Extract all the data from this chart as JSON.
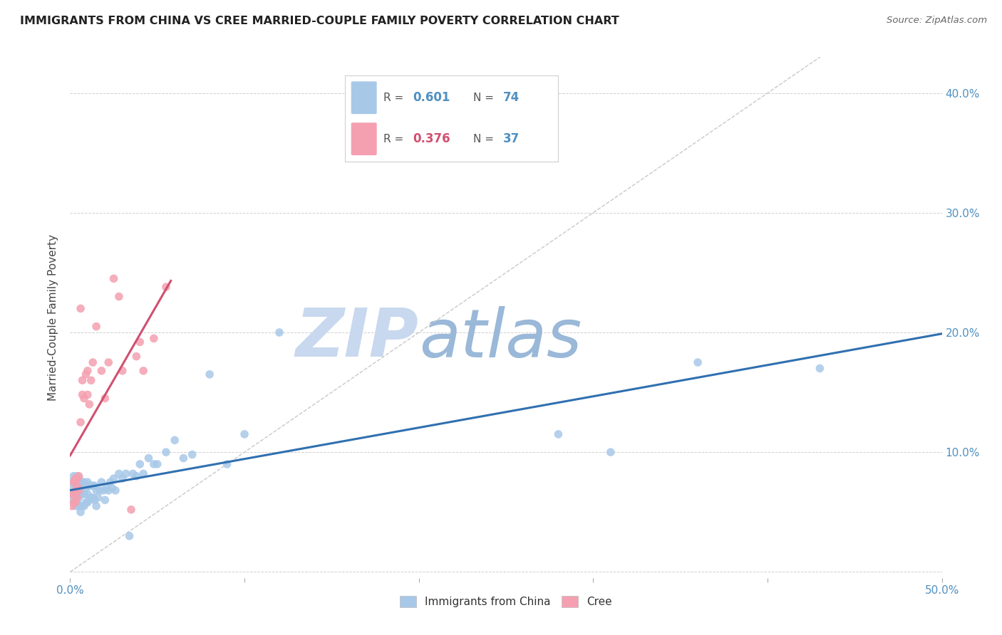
{
  "title": "IMMIGRANTS FROM CHINA VS CREE MARRIED-COUPLE FAMILY POVERTY CORRELATION CHART",
  "source": "Source: ZipAtlas.com",
  "ylabel": "Married-Couple Family Poverty",
  "xlim": [
    0,
    0.5
  ],
  "ylim": [
    -0.005,
    0.43
  ],
  "xticks": [
    0.0,
    0.1,
    0.2,
    0.3,
    0.4,
    0.5
  ],
  "xticklabels": [
    "0.0%",
    "",
    "",
    "",
    "",
    "50.0%"
  ],
  "yticks": [
    0.0,
    0.1,
    0.2,
    0.3,
    0.4
  ],
  "right_yticklabels": [
    "",
    "10.0%",
    "20.0%",
    "30.0%",
    "40.0%"
  ],
  "blue_color": "#a8c8e8",
  "pink_color": "#f4a0b0",
  "blue_line_color": "#3070b0",
  "pink_line_color": "#d05070",
  "diagonal_color": "#c8c8c8",
  "tick_color": "#5090c0",
  "watermark_zip_color": "#c8d8ee",
  "watermark_atlas_color": "#9ab8d8",
  "background_color": "#ffffff",
  "legend_blue_r": "0.601",
  "legend_blue_n": "74",
  "legend_pink_r": "0.376",
  "legend_pink_n": "37",
  "china_x": [
    0.001,
    0.001,
    0.002,
    0.002,
    0.002,
    0.003,
    0.003,
    0.003,
    0.004,
    0.004,
    0.004,
    0.004,
    0.005,
    0.005,
    0.005,
    0.005,
    0.006,
    0.006,
    0.006,
    0.007,
    0.007,
    0.007,
    0.008,
    0.008,
    0.008,
    0.009,
    0.009,
    0.01,
    0.01,
    0.01,
    0.011,
    0.011,
    0.012,
    0.012,
    0.013,
    0.013,
    0.014,
    0.014,
    0.015,
    0.015,
    0.016,
    0.017,
    0.018,
    0.019,
    0.02,
    0.021,
    0.022,
    0.023,
    0.024,
    0.025,
    0.026,
    0.028,
    0.03,
    0.032,
    0.034,
    0.036,
    0.038,
    0.04,
    0.042,
    0.045,
    0.048,
    0.05,
    0.055,
    0.06,
    0.065,
    0.07,
    0.08,
    0.09,
    0.1,
    0.12,
    0.28,
    0.31,
    0.36,
    0.43
  ],
  "china_y": [
    0.065,
    0.075,
    0.06,
    0.07,
    0.08,
    0.055,
    0.068,
    0.072,
    0.058,
    0.065,
    0.072,
    0.08,
    0.055,
    0.062,
    0.07,
    0.078,
    0.05,
    0.065,
    0.075,
    0.055,
    0.065,
    0.075,
    0.055,
    0.065,
    0.075,
    0.058,
    0.07,
    0.058,
    0.065,
    0.075,
    0.06,
    0.072,
    0.062,
    0.072,
    0.062,
    0.072,
    0.06,
    0.072,
    0.055,
    0.068,
    0.062,
    0.068,
    0.075,
    0.068,
    0.06,
    0.07,
    0.068,
    0.075,
    0.07,
    0.078,
    0.068,
    0.082,
    0.078,
    0.082,
    0.03,
    0.082,
    0.08,
    0.09,
    0.082,
    0.095,
    0.09,
    0.09,
    0.1,
    0.11,
    0.095,
    0.098,
    0.165,
    0.09,
    0.115,
    0.2,
    0.115,
    0.1,
    0.175,
    0.17
  ],
  "cree_x": [
    0.001,
    0.001,
    0.002,
    0.002,
    0.002,
    0.003,
    0.003,
    0.003,
    0.004,
    0.004,
    0.004,
    0.005,
    0.005,
    0.006,
    0.006,
    0.007,
    0.007,
    0.008,
    0.009,
    0.01,
    0.01,
    0.011,
    0.012,
    0.013,
    0.015,
    0.018,
    0.02,
    0.022,
    0.025,
    0.028,
    0.03,
    0.035,
    0.038,
    0.04,
    0.042,
    0.048,
    0.055
  ],
  "cree_y": [
    0.055,
    0.065,
    0.058,
    0.065,
    0.075,
    0.058,
    0.068,
    0.078,
    0.062,
    0.072,
    0.078,
    0.068,
    0.08,
    0.22,
    0.125,
    0.16,
    0.148,
    0.145,
    0.165,
    0.168,
    0.148,
    0.14,
    0.16,
    0.175,
    0.205,
    0.168,
    0.145,
    0.175,
    0.245,
    0.23,
    0.168,
    0.052,
    0.18,
    0.192,
    0.168,
    0.195,
    0.238
  ]
}
